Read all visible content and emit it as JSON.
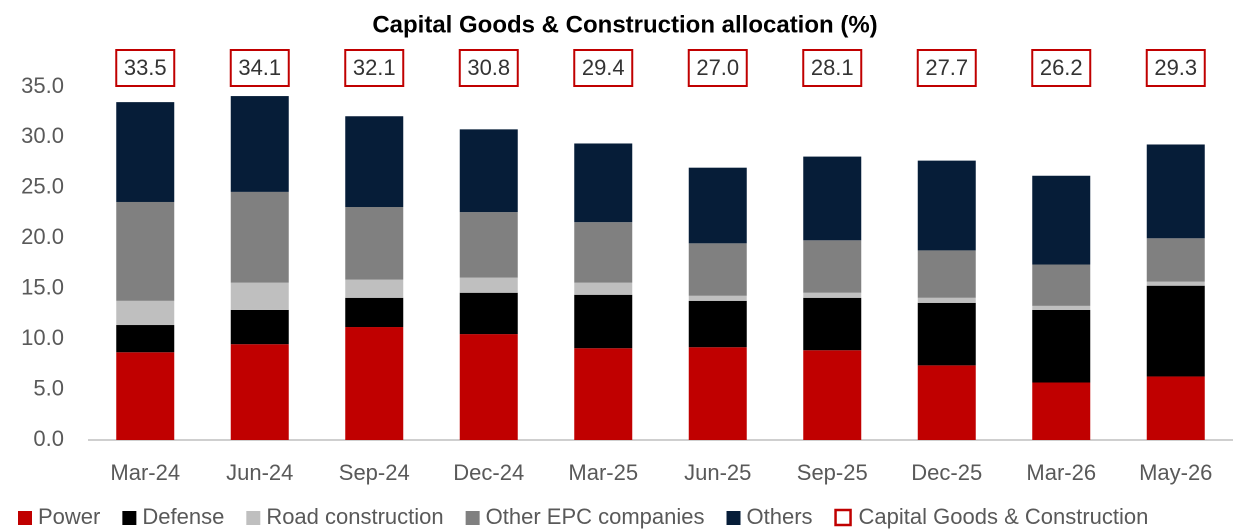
{
  "chart_data": {
    "type": "stacked_bar",
    "title": "Capital Goods & Construction allocation (%)",
    "categories": [
      "Mar-24",
      "Jun-24",
      "Sep-24",
      "Dec-24",
      "Mar-25",
      "Jun-25",
      "Sep-25",
      "Dec-25",
      "Mar-26",
      "May-26"
    ],
    "series": [
      {
        "name": "Power",
        "color": "#c00000",
        "values": [
          8.7,
          9.5,
          11.2,
          10.5,
          9.1,
          9.2,
          8.9,
          7.4,
          5.7,
          6.3
        ]
      },
      {
        "name": "Defense",
        "color": "#000000",
        "values": [
          2.7,
          3.4,
          2.9,
          4.1,
          5.3,
          4.6,
          5.2,
          6.2,
          7.2,
          9.0
        ]
      },
      {
        "name": "Road construction",
        "color": "#bfbfbf",
        "values": [
          2.4,
          2.7,
          1.8,
          1.5,
          1.2,
          0.5,
          0.5,
          0.5,
          0.4,
          0.4
        ]
      },
      {
        "name": "Other EPC companies",
        "color": "#808080",
        "values": [
          9.8,
          9.0,
          7.2,
          6.5,
          6.0,
          5.2,
          5.2,
          4.7,
          4.1,
          4.3
        ]
      },
      {
        "name": "Others",
        "color": "#061d38",
        "values": [
          9.9,
          9.5,
          9.0,
          8.2,
          7.8,
          7.5,
          8.3,
          8.9,
          8.8,
          9.3
        ]
      }
    ],
    "totals": {
      "name": "Capital Goods & Construction",
      "color": "#c00000",
      "values": [
        33.5,
        34.1,
        32.1,
        30.8,
        29.4,
        27.0,
        28.1,
        27.7,
        26.2,
        29.3
      ],
      "value_labels": [
        "33.5",
        "34.1",
        "32.1",
        "30.8",
        "29.4",
        "27.0",
        "28.1",
        "27.7",
        "26.2",
        "29.3"
      ]
    },
    "ylim": [
      0,
      35
    ],
    "yticks": [
      {
        "value": 0,
        "label": "0.0"
      },
      {
        "value": 5,
        "label": "5.0"
      },
      {
        "value": 10,
        "label": "10.0"
      },
      {
        "value": 15,
        "label": "15.0"
      },
      {
        "value": 20,
        "label": "20.0"
      },
      {
        "value": 25,
        "label": "25.0"
      },
      {
        "value": 30,
        "label": "30.0"
      },
      {
        "value": 35,
        "label": "35.0"
      }
    ],
    "grid": false,
    "legend": "bottom"
  }
}
